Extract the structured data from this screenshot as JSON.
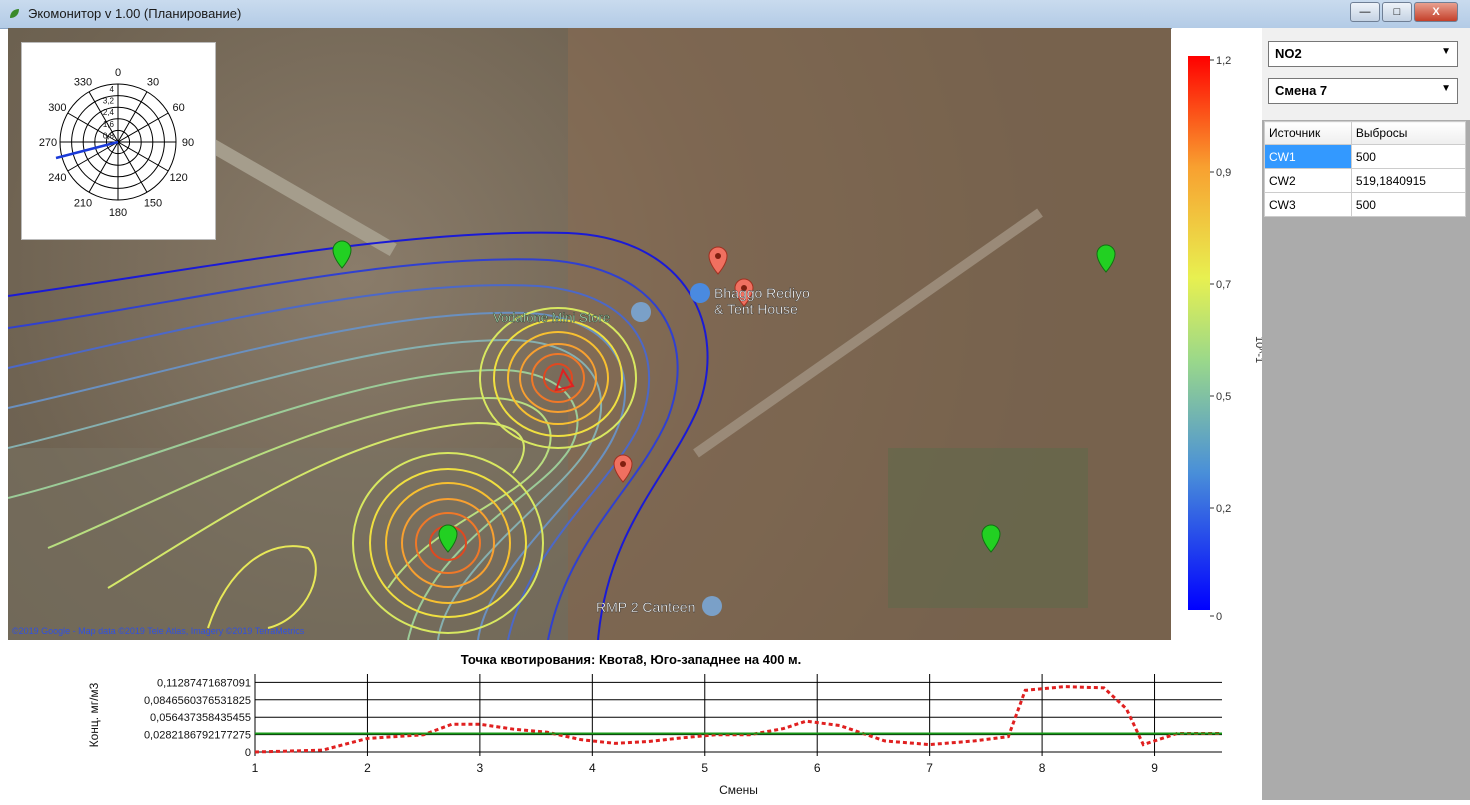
{
  "window": {
    "title": "Экомонитор v 1.00 (Планирование)"
  },
  "controls": {
    "pollutant": "NO2",
    "shift": "Смена 7"
  },
  "sources_table": {
    "headers": [
      "Источник",
      "Выбросы"
    ],
    "rows": [
      [
        "CW1",
        "500"
      ],
      [
        "CW2",
        "519,1840915"
      ],
      [
        "CW3",
        "500"
      ]
    ]
  },
  "map": {
    "labels": [
      "Vodafone Mini Store",
      "Bhaggo Rediyo",
      "& Tent House",
      "RMP 2 Canteen"
    ],
    "attribution": "©2019 Google - Map data ©2019 Tele Atlas, Imagery ©2019 TerraMetrics"
  },
  "compass": {
    "angles": [
      "0",
      "30",
      "60",
      "90",
      "120",
      "150",
      "180",
      "210",
      "240",
      "270",
      "300",
      "330"
    ],
    "radial": [
      "4",
      "3,2",
      "2,4",
      "1,6",
      "0,8"
    ]
  },
  "colorbar": {
    "ticks": [
      "1,2",
      "0,9",
      "0,7",
      "0,5",
      "0,2",
      "0"
    ],
    "unit": "10^-1"
  },
  "chart_data": {
    "type": "line",
    "title": "Точка квотирования: Квота8, Юго-западнее на 400 м.",
    "xlabel": "Смены",
    "ylabel": "Конц. мг/м3",
    "xticks": [
      "1",
      "2",
      "3",
      "4",
      "5",
      "6",
      "7",
      "8",
      "9"
    ],
    "yticks": [
      "0,11287471687091",
      "0,0846560376531825",
      "0,056437358435455",
      "0,0282186792177275",
      "0"
    ],
    "ylim": [
      0,
      0.12
    ],
    "series": [
      {
        "color": "#e02020",
        "x": [
          1,
          1.6,
          2,
          2.5,
          2.75,
          3,
          3.3,
          3.6,
          3.9,
          4.2,
          4.5,
          4.8,
          5.1,
          5.4,
          5.7,
          5.9,
          6.2,
          6.6,
          7,
          7.4,
          7.7,
          7.85,
          8.2,
          8.55,
          8.75,
          8.9,
          9.2,
          9.6
        ],
        "y": [
          0,
          0.003,
          0.022,
          0.028,
          0.045,
          0.045,
          0.037,
          0.032,
          0.02,
          0.014,
          0.017,
          0.023,
          0.028,
          0.028,
          0.038,
          0.05,
          0.043,
          0.018,
          0.012,
          0.018,
          0.025,
          0.1,
          0.106,
          0.104,
          0.07,
          0.012,
          0.03,
          0.03
        ]
      },
      {
        "color": "#1a9a1a",
        "x": [
          1,
          9.6
        ],
        "y": [
          0.03,
          0.03
        ]
      }
    ]
  }
}
